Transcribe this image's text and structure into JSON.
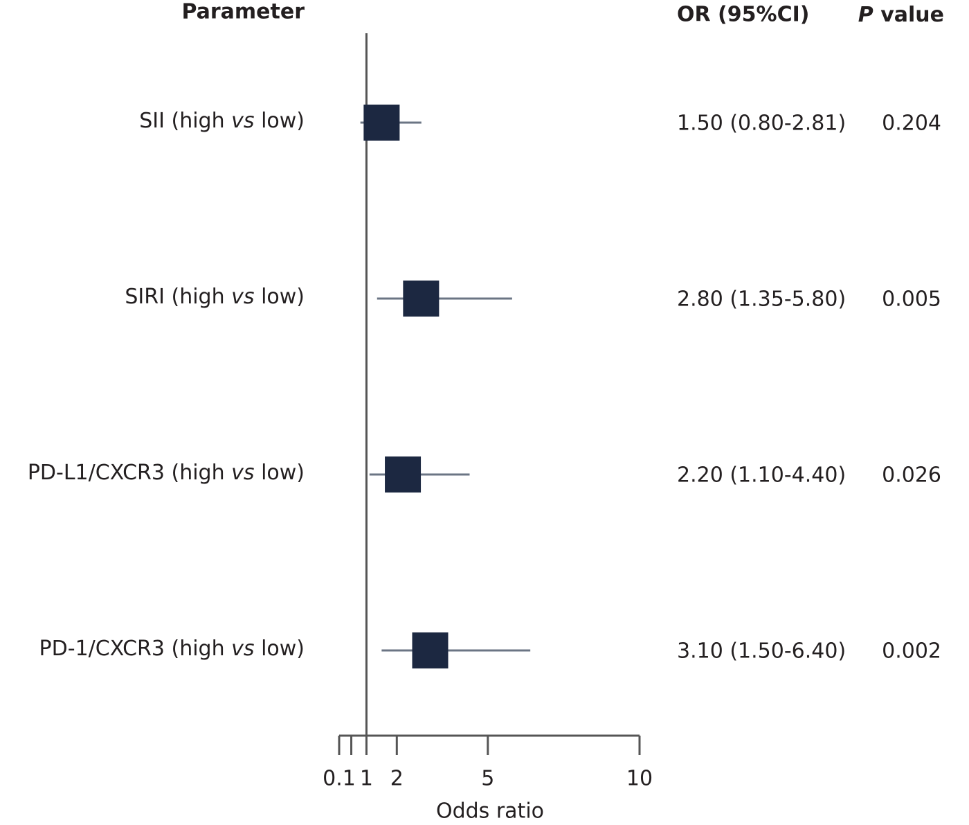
{
  "chart_data": {
    "type": "forest",
    "columns": {
      "parameter": "Parameter",
      "or": "OR (95%CI)",
      "p": "P value"
    },
    "categories": [
      "SII (high vs low)",
      "SIRI (high vs low)",
      "PD-L1/CXCR3 (high vs low)",
      "PD-1/CXCR3 (high vs low)"
    ],
    "values": [
      1.5,
      2.8,
      2.2,
      3.1
    ],
    "lower": [
      0.8,
      1.35,
      1.1,
      1.5
    ],
    "upper": [
      2.81,
      5.8,
      4.4,
      6.4
    ],
    "value_labels": [
      "1.50 (0.80-2.81)",
      "2.80 (1.35-5.80)",
      "2.20 (1.10-4.40)",
      "3.10 (1.50-6.40)"
    ],
    "p_values": [
      0.204,
      0.005,
      0.026,
      0.002
    ],
    "xlabel": "Odds ratio",
    "xlim": [
      0.1,
      10
    ],
    "xticks": [
      0.1,
      1,
      2,
      5,
      10
    ],
    "xminorticks": [
      0.5
    ],
    "reference_line": 1,
    "color": "#1c2841",
    "whisker_color": "#6b7584"
  }
}
